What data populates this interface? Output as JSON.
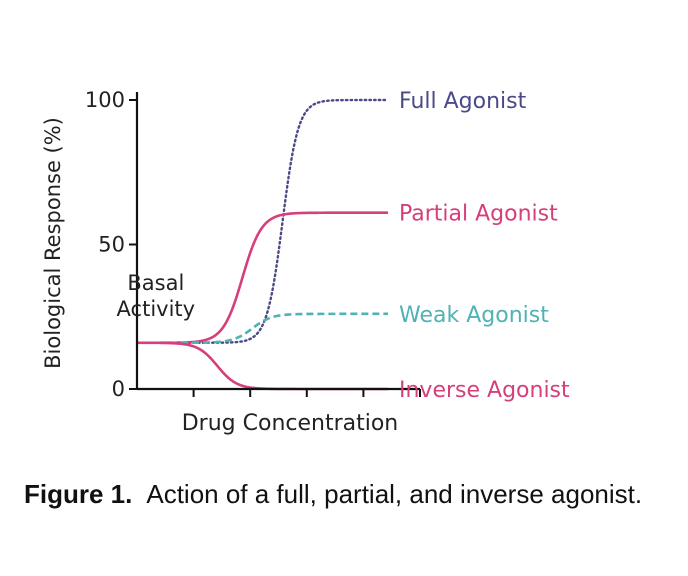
{
  "chart_data": {
    "type": "line",
    "x_domain": [
      0,
      10
    ],
    "ylim": [
      0,
      100
    ],
    "yticks": [
      {
        "value": 0,
        "label": "0"
      },
      {
        "value": 50,
        "label": "50"
      },
      {
        "value": 100,
        "label": "100"
      }
    ],
    "x_tick_count": 5,
    "xlabel": "Drug Concentration",
    "ylabel": "Biological Response (%)",
    "baseline": 16,
    "series": [
      {
        "name": "Full Agonist",
        "top": 100,
        "midpoint": 5.8,
        "steepness": 3.2,
        "color": "#4a4a8a",
        "dash": "dotted"
      },
      {
        "name": "Partial Agonist",
        "top": 61,
        "midpoint": 4.2,
        "steepness": 2.6,
        "color": "#d63e7c",
        "dash": "solid"
      },
      {
        "name": "Weak Agonist",
        "top": 26,
        "midpoint": 4.6,
        "steepness": 2.6,
        "color": "#4fb2b5",
        "dash": "dashed"
      },
      {
        "name": "Inverse Agonist",
        "top": 0,
        "midpoint": 3.2,
        "steepness": 2.6,
        "color": "#d63e7c",
        "dash": "solid"
      }
    ],
    "annotations": [
      {
        "text": "Basal",
        "x": 0.75,
        "y": 37
      },
      {
        "text": "Activity",
        "x": 0.75,
        "y": 28
      }
    ],
    "grid": false,
    "legend": "inline-right"
  },
  "caption": {
    "label": "Figure 1.",
    "text": "Action of a full, partial, and inverse agonist."
  }
}
